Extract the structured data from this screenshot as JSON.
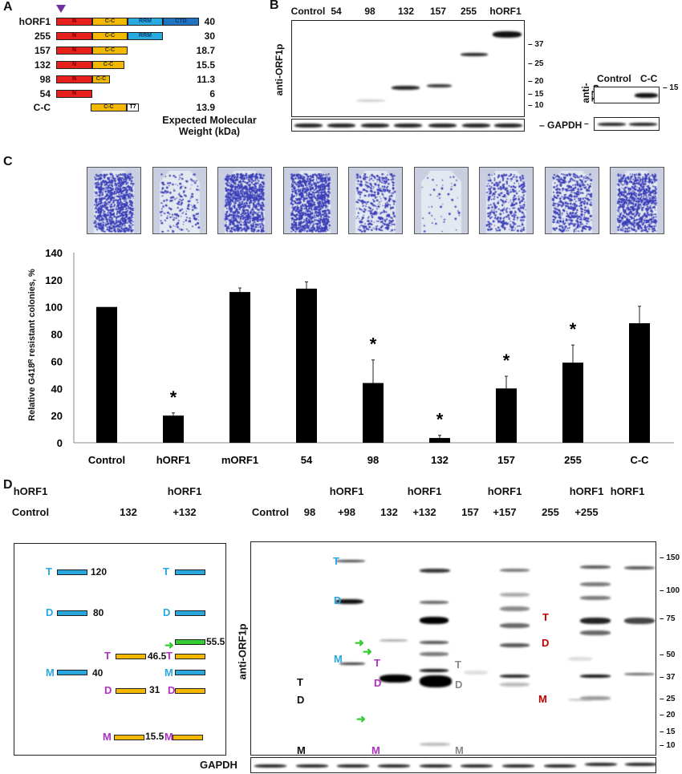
{
  "panels": {
    "a": "A",
    "b": "B",
    "c": "C",
    "d": "D"
  },
  "panel_a": {
    "constructs": [
      {
        "name": "hORF1",
        "mw": "40",
        "domains": [
          "N",
          "C-C",
          "RRM",
          "CTD"
        ]
      },
      {
        "name": "255",
        "mw": "30",
        "domains": [
          "N",
          "C-C",
          "RRM"
        ]
      },
      {
        "name": "157",
        "mw": "18.7",
        "domains": [
          "N",
          "C-C"
        ]
      },
      {
        "name": "132",
        "mw": "15.5",
        "domains": [
          "N",
          "C-C"
        ]
      },
      {
        "name": "98",
        "mw": "11.3",
        "domains": [
          "N",
          "C-C"
        ]
      },
      {
        "name": "54",
        "mw": "6",
        "domains": [
          "N"
        ]
      },
      {
        "name": "C-C",
        "mw": "13.9",
        "domains": [
          "C-C",
          "T7"
        ]
      }
    ],
    "mw_title_1": "Expected Molecular",
    "mw_title_2": "Weight (kDa)",
    "colors": {
      "N": "#e8201c",
      "C-C": "#f5b800",
      "RRM": "#29abe2",
      "CTD": "#1f73c0",
      "T7": "#ffffff",
      "marker": "#7030a0"
    }
  },
  "panel_b": {
    "lanes": [
      "Control",
      "54",
      "98",
      "132",
      "157",
      "255",
      "hORF1"
    ],
    "antibody": "anti-ORF1p",
    "loading": "GAPDH",
    "markers": [
      "37",
      "25",
      "20",
      "15",
      "10"
    ],
    "t7_lanes": [
      "Control",
      "C-C"
    ],
    "t7_antibody_1": "anti-",
    "t7_antibody_2": "T7p",
    "t7_marker": "15"
  },
  "chart_data": {
    "type": "bar",
    "categories": [
      "Control",
      "hORF1",
      "mORF1",
      "54",
      "98",
      "132",
      "157",
      "255",
      "C-C"
    ],
    "values": [
      100,
      20,
      111,
      113.5,
      44,
      3.5,
      40,
      59,
      88
    ],
    "error_upper": [
      0,
      2,
      3,
      5,
      17,
      2,
      9,
      13,
      12.5
    ],
    "significant": [
      false,
      true,
      false,
      false,
      true,
      true,
      true,
      true,
      false
    ],
    "sig_symbol": "*",
    "ylabel": "Relative G418ᴿ resistant colonies, %",
    "ylim": [
      0,
      140
    ],
    "yticks": [
      "0",
      "20",
      "40",
      "60",
      "80",
      "100",
      "120",
      "140"
    ],
    "xlabel": ""
  },
  "panel_d": {
    "left_top": [
      "hORF1",
      "",
      "hORF1"
    ],
    "left_bottom": [
      "Control",
      "132",
      "+132"
    ],
    "right_top": [
      "",
      "",
      "hORF1",
      "",
      "hORF1",
      "",
      "hORF1",
      "",
      "hORF1",
      "hORF1"
    ],
    "right_bottom": [
      "Control",
      "98",
      "+98",
      "132",
      "+132",
      "157",
      "+157",
      "255",
      "+255",
      ""
    ],
    "antibody": "anti-ORF1p",
    "loading": "GAPDH",
    "markers": [
      "150",
      "100",
      "75",
      "50",
      "37",
      "25",
      "20",
      "15",
      "10"
    ],
    "schematic": {
      "t": "T",
      "d": "D",
      "m": "M",
      "v120": "120",
      "v80": "80",
      "v40": "40",
      "v55": "55.5",
      "v46": "46.5",
      "v31": "31",
      "v15": "15.5"
    },
    "blot_labels": {
      "t": "T",
      "d": "D",
      "m": "M"
    },
    "colors": {
      "hORF1": "#29a8e0",
      "truncated": "#b030c0",
      "fusion": "#33cc33",
      "red": "#c00000",
      "gray": "#888888"
    }
  }
}
